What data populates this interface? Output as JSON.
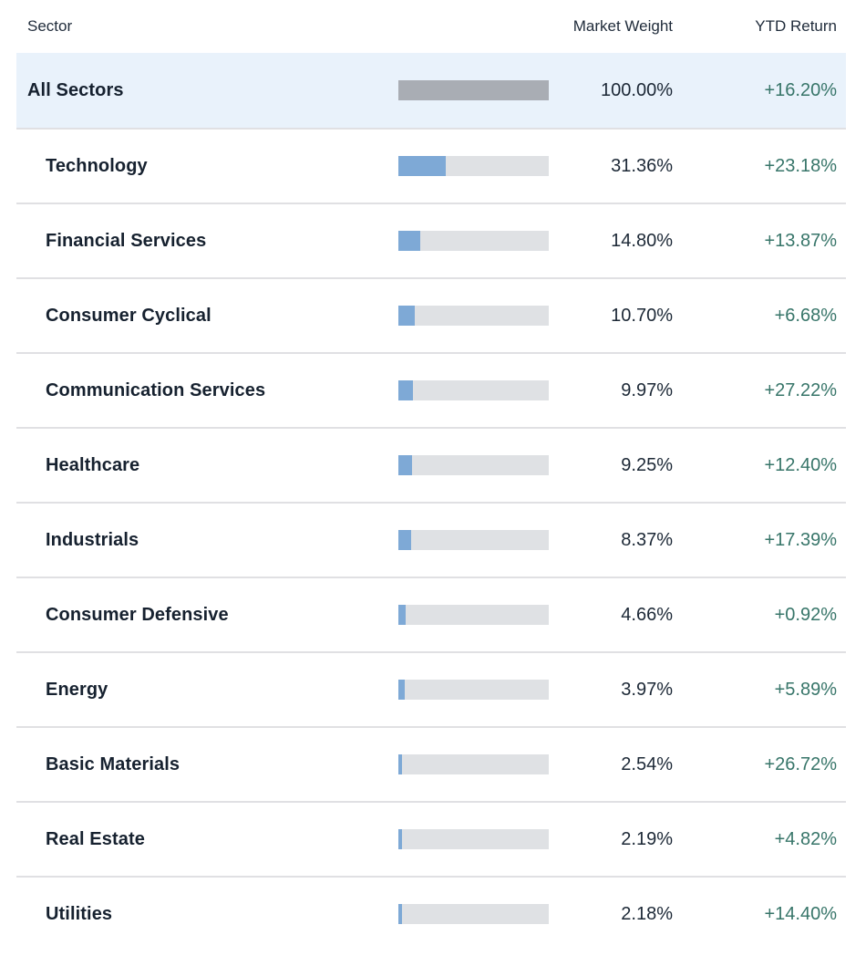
{
  "header": {
    "sector_label": "Sector",
    "market_weight_label": "Market Weight",
    "ytd_return_label": "YTD Return"
  },
  "colors": {
    "bar_blue": "#7ea9d6",
    "bar_gray_all_sectors": "#a9adb4",
    "bar_track": "#dfe1e4",
    "highlight_row_bg": "#e9f2fb",
    "ytd_green": "#377569",
    "text_dark": "#16212f",
    "separator": "#e0e0e3"
  },
  "rows": [
    {
      "name": "All Sectors",
      "weight": "100.00%",
      "ytd": "+16.20%",
      "weight_value": 100.0,
      "highlight": true
    },
    {
      "name": "Technology",
      "weight": "31.36%",
      "ytd": "+23.18%",
      "weight_value": 31.36,
      "highlight": false
    },
    {
      "name": "Financial Services",
      "weight": "14.80%",
      "ytd": "+13.87%",
      "weight_value": 14.8,
      "highlight": false
    },
    {
      "name": "Consumer Cyclical",
      "weight": "10.70%",
      "ytd": "+6.68%",
      "weight_value": 10.7,
      "highlight": false
    },
    {
      "name": "Communication Services",
      "weight": "9.97%",
      "ytd": "+27.22%",
      "weight_value": 9.97,
      "highlight": false
    },
    {
      "name": "Healthcare",
      "weight": "9.25%",
      "ytd": "+12.40%",
      "weight_value": 9.25,
      "highlight": false
    },
    {
      "name": "Industrials",
      "weight": "8.37%",
      "ytd": "+17.39%",
      "weight_value": 8.37,
      "highlight": false
    },
    {
      "name": "Consumer Defensive",
      "weight": "4.66%",
      "ytd": "+0.92%",
      "weight_value": 4.66,
      "highlight": false
    },
    {
      "name": "Energy",
      "weight": "3.97%",
      "ytd": "+5.89%",
      "weight_value": 3.97,
      "highlight": false
    },
    {
      "name": "Basic Materials",
      "weight": "2.54%",
      "ytd": "+26.72%",
      "weight_value": 2.54,
      "highlight": false
    },
    {
      "name": "Real Estate",
      "weight": "2.19%",
      "ytd": "+4.82%",
      "weight_value": 2.19,
      "highlight": false
    },
    {
      "name": "Utilities",
      "weight": "2.18%",
      "ytd": "+14.40%",
      "weight_value": 2.18,
      "highlight": false
    }
  ],
  "chart_data": {
    "type": "table",
    "columns": [
      "Sector",
      "Market Weight",
      "YTD Return"
    ],
    "bar_metric": "Market Weight",
    "bar_max": 100,
    "rows": [
      [
        "All Sectors",
        100.0,
        16.2
      ],
      [
        "Technology",
        31.36,
        23.18
      ],
      [
        "Financial Services",
        14.8,
        13.87
      ],
      [
        "Consumer Cyclical",
        10.7,
        6.68
      ],
      [
        "Communication Services",
        9.97,
        27.22
      ],
      [
        "Healthcare",
        9.25,
        12.4
      ],
      [
        "Industrials",
        8.37,
        17.39
      ],
      [
        "Consumer Defensive",
        4.66,
        0.92
      ],
      [
        "Energy",
        3.97,
        5.89
      ],
      [
        "Basic Materials",
        2.54,
        26.72
      ],
      [
        "Real Estate",
        2.19,
        4.82
      ],
      [
        "Utilities",
        2.18,
        14.4
      ]
    ]
  }
}
